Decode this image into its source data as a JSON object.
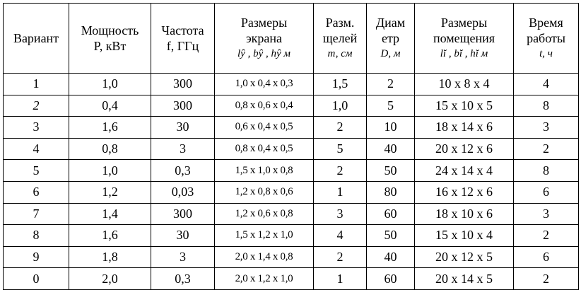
{
  "table": {
    "header": [
      [
        "Вариант"
      ],
      [
        "Мощность",
        "P, кВт"
      ],
      [
        "Частота",
        "f, ГГц"
      ],
      [
        "Размеры",
        "экрана",
        "lŷ , bŷ , hŷ  м"
      ],
      [
        "Разм.",
        "щелей",
        "т, см"
      ],
      [
        "Диам",
        "етр",
        "D, м"
      ],
      [
        "Размеры",
        "помещения",
        "lĭ , bĭ , hĭ  м"
      ],
      [
        "Время",
        "работы",
        "t, ч"
      ]
    ],
    "rows": [
      [
        "1",
        "1,0",
        "300",
        "1,0 x 0,4 x 0,3",
        "1,5",
        "2",
        "10 x 8 x 4",
        "4"
      ],
      [
        "2",
        "0,4",
        "300",
        "0,8 x 0,6 x 0,4",
        "1,0",
        "5",
        "15 x 10 x 5",
        "8"
      ],
      [
        "3",
        "1,6",
        "30",
        "0,6 x 0,4 x 0,5",
        "2",
        "10",
        "18 x 14 x 6",
        "3"
      ],
      [
        "4",
        "0,8",
        "3",
        "0,8 x 0,4 x 0,5",
        "5",
        "40",
        "20 x 12 x 6",
        "2"
      ],
      [
        "5",
        "1,0",
        "0,3",
        "1,5 x 1,0 x 0,8",
        "2",
        "50",
        "24 x 14 x 4",
        "8"
      ],
      [
        "6",
        "1,2",
        "0,03",
        "1,2 x 0,8 x 0,6",
        "1",
        "80",
        "16 x 12 x 6",
        "6"
      ],
      [
        "7",
        "1,4",
        "300",
        "1,2 x 0,6 x 0,8",
        "3",
        "60",
        "18 x 10 x 6",
        "3"
      ],
      [
        "8",
        "1,6",
        "30",
        "1,5 x 1,2 x 1,0",
        "4",
        "50",
        "15 x 10 x 4",
        "2"
      ],
      [
        "9",
        "1,8",
        "3",
        "2,0 x 1,4 x 0,8",
        "2",
        "40",
        "20 x 12 x 5",
        "6"
      ],
      [
        "0",
        "2,0",
        "0,3",
        "2,0 x 1,2 x 1,0",
        "1",
        "60",
        "20 x 14 x 5",
        "2"
      ]
    ]
  }
}
